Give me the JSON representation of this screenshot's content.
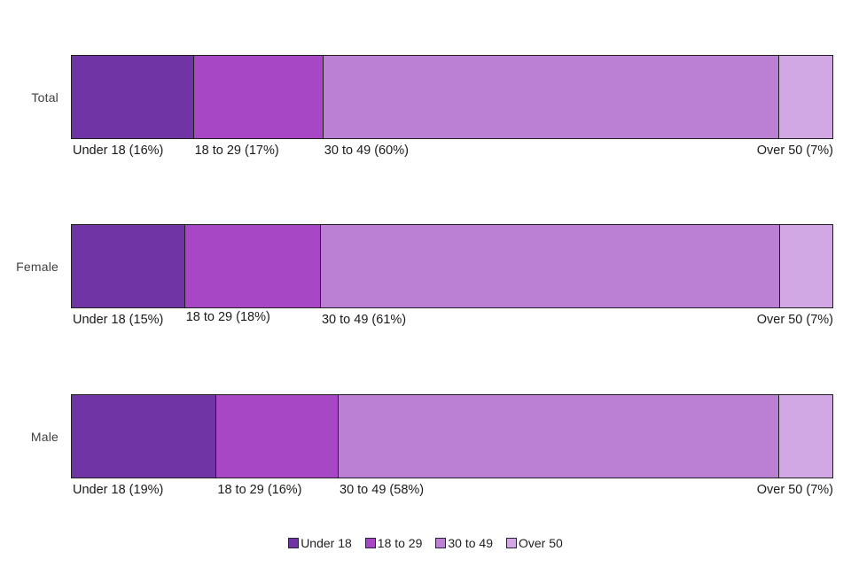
{
  "chart_data": {
    "type": "bar",
    "orientation": "horizontal-stacked",
    "title": "",
    "xlim": [
      0,
      100
    ],
    "grid": false,
    "legend_position": "bottom",
    "border_color": "#1e1e1e",
    "categories": [
      "Total",
      "Female",
      "Male"
    ],
    "series": [
      {
        "name": "Under 18",
        "color": "#7134a5",
        "values": [
          16,
          15,
          19
        ]
      },
      {
        "name": "18 to 29",
        "color": "#a847c6",
        "values": [
          17,
          18,
          16
        ]
      },
      {
        "name": "30 to 49",
        "color": "#bb80d4",
        "values": [
          60,
          61,
          58
        ]
      },
      {
        "name": "Over 50",
        "color": "#d1a8e4",
        "values": [
          7,
          7,
          7
        ]
      }
    ],
    "segment_labels": [
      [
        "Under 18 (16%)",
        "18 to 29 (17%)",
        "30 to 49 (60%)",
        "Over 50 (7%)"
      ],
      [
        "Under 18 (15%)",
        "18 to 29 (18%)",
        "30 to 49 (61%)",
        "Over 50 (7%)"
      ],
      [
        "Under 18 (19%)",
        "18 to 29 (16%)",
        "30 to 49 (58%)",
        "Over 50 (7%)"
      ]
    ],
    "legend": [
      "Under 18",
      "18 to 29",
      "30 to 49",
      "Over 50"
    ]
  }
}
